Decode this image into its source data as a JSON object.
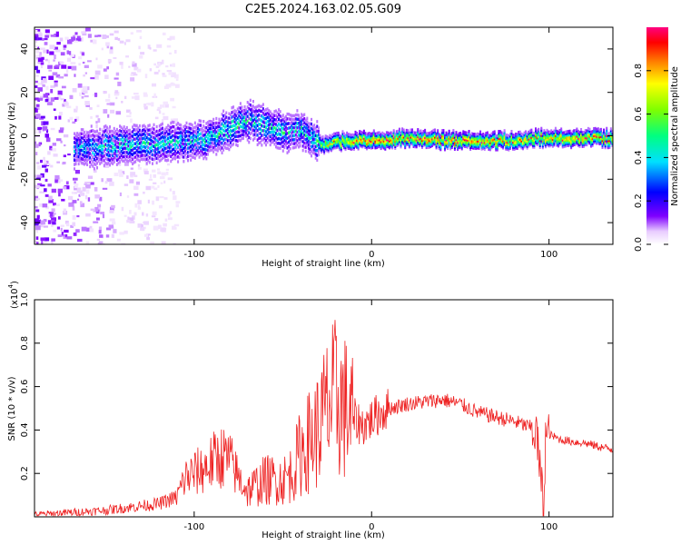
{
  "title": "C2E5.2024.163.02.05.G09",
  "chart_data": [
    {
      "type": "heatmap",
      "xlabel": "Height of straight line (km)",
      "ylabel": "Frequency (Hz)",
      "xlim": [
        -190,
        136
      ],
      "ylim": [
        -50,
        50
      ],
      "x_ticks": [
        -100,
        0,
        100
      ],
      "x_tick_labels": [
        "-100",
        "0",
        "100"
      ],
      "y_ticks": [
        -40,
        -20,
        0,
        20,
        40
      ],
      "y_tick_labels": [
        "-40",
        "-20",
        "0",
        "20",
        "40"
      ],
      "colorbar": {
        "label": "Normalized spectral amplitude",
        "range": [
          0,
          1
        ],
        "ticks": [
          0.0,
          0.2,
          0.4,
          0.6,
          0.8
        ],
        "tick_labels": [
          "0.0",
          "0.2",
          "0.4",
          "0.6",
          "0.8"
        ],
        "colormap": [
          "#ffffff",
          "#7f00ff",
          "#0000ff",
          "#00e0ff",
          "#00ff80",
          "#7fff00",
          "#ffff00",
          "#ff8000",
          "#ff0000",
          "#ff0080"
        ]
      },
      "ridge": {
        "x": [
          -165,
          -150,
          -130,
          -110,
          -95,
          -80,
          -70,
          -60,
          -50,
          -40,
          -32,
          -25,
          -15,
          0,
          20,
          40,
          60,
          80,
          92,
          100,
          115,
          136
        ],
        "y": [
          -6,
          -5,
          -4,
          -3,
          -2,
          3,
          7,
          5,
          2,
          3,
          -3,
          -4,
          -2,
          -2,
          -1,
          -2,
          -2,
          -2,
          -1,
          -1,
          -1,
          -1
        ],
        "amplitude": [
          0.35,
          0.45,
          0.45,
          0.4,
          0.45,
          0.5,
          0.45,
          0.5,
          0.45,
          0.45,
          0.5,
          0.7,
          0.8,
          0.9,
          0.8,
          0.9,
          0.85,
          0.8,
          0.8,
          0.8,
          0.85,
          0.8
        ]
      }
    },
    {
      "type": "line",
      "xlabel": "Height of straight line (km)",
      "ylabel": "SNR (10 * v/v)",
      "y_scale_label": "(x10",
      "y_scale_exponent": "4",
      "y_scale_suffix": ")",
      "xlim": [
        -190,
        136
      ],
      "ylim": [
        0,
        1.0
      ],
      "x_ticks": [
        -100,
        0,
        100
      ],
      "x_tick_labels": [
        "-100",
        "0",
        "100"
      ],
      "y_ticks": [
        0.2,
        0.4,
        0.6,
        0.8,
        1.0
      ],
      "y_tick_labels": [
        "0.2",
        "0.4",
        "0.6",
        "0.8",
        "1.0"
      ],
      "series": [
        {
          "color": "#ee2222",
          "x": [
            -190,
            -170,
            -150,
            -130,
            -120,
            -110,
            -105,
            -100,
            -95,
            -90,
            -85,
            -80,
            -75,
            -70,
            -60,
            -50,
            -45,
            -40,
            -35,
            -30,
            -25,
            -20,
            -15,
            -10,
            -5,
            0,
            5,
            10,
            20,
            30,
            40,
            50,
            60,
            70,
            80,
            90,
            93,
            96,
            97,
            98,
            100,
            105,
            110,
            120,
            130,
            136
          ],
          "y": [
            0.01,
            0.02,
            0.03,
            0.05,
            0.06,
            0.09,
            0.18,
            0.2,
            0.22,
            0.25,
            0.28,
            0.26,
            0.18,
            0.12,
            0.17,
            0.17,
            0.2,
            0.3,
            0.35,
            0.4,
            0.5,
            0.55,
            0.5,
            0.45,
            0.42,
            0.45,
            0.48,
            0.5,
            0.52,
            0.53,
            0.54,
            0.52,
            0.48,
            0.46,
            0.44,
            0.41,
            0.38,
            0.12,
            0.05,
            0.37,
            0.38,
            0.36,
            0.35,
            0.34,
            0.32,
            0.31
          ]
        }
      ]
    }
  ]
}
